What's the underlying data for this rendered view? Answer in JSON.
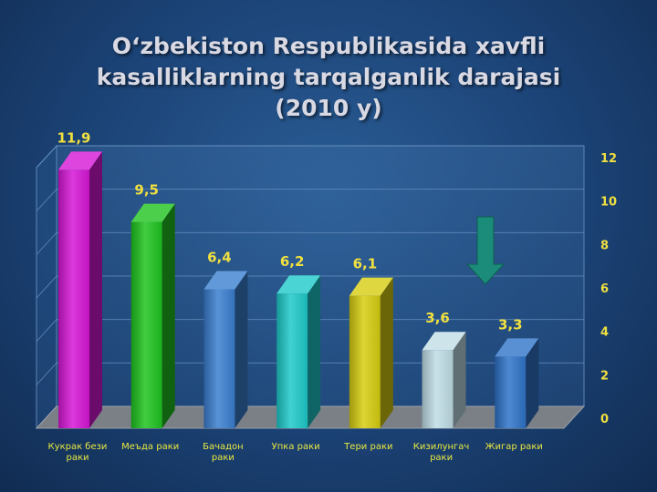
{
  "colors": {
    "label_yellow": "#f0e040",
    "category_text": "#e8e840",
    "axis_text": "#f0e040",
    "arrow": "#1b8b7a"
  },
  "chart_data": {
    "type": "bar",
    "title_lines": [
      "O‘zbekiston Respublikasida xavfli",
      "kasalliklarning tarqalganlik darajasi",
      "(2010 y)"
    ],
    "categories": [
      [
        "Кукрак бези",
        "раки"
      ],
      [
        "Меъда раки"
      ],
      [
        "Бачадон",
        "раки"
      ],
      [
        "Упка раки"
      ],
      [
        "Тери раки"
      ],
      [
        "Кизилунгач",
        "раки"
      ],
      [
        "Жигар раки"
      ]
    ],
    "values": [
      11.9,
      9.5,
      6.4,
      6.2,
      6.1,
      3.6,
      3.3
    ],
    "value_labels": [
      "11,9",
      "9,5",
      "6,4",
      "6,2",
      "6,1",
      "3,6",
      "3,3"
    ],
    "bar_colors": [
      "#d616d6",
      "#1fc41f",
      "#3a7fd0",
      "#1ec9c9",
      "#d6cd10",
      "#c0dde6",
      "#2f74c9"
    ],
    "y_ticks": [
      "0",
      "2",
      "4",
      "6",
      "8",
      "10",
      "12"
    ],
    "ylim": [
      0,
      12
    ],
    "axis_position": "right",
    "grid": true,
    "annotation": "down-arrow"
  }
}
